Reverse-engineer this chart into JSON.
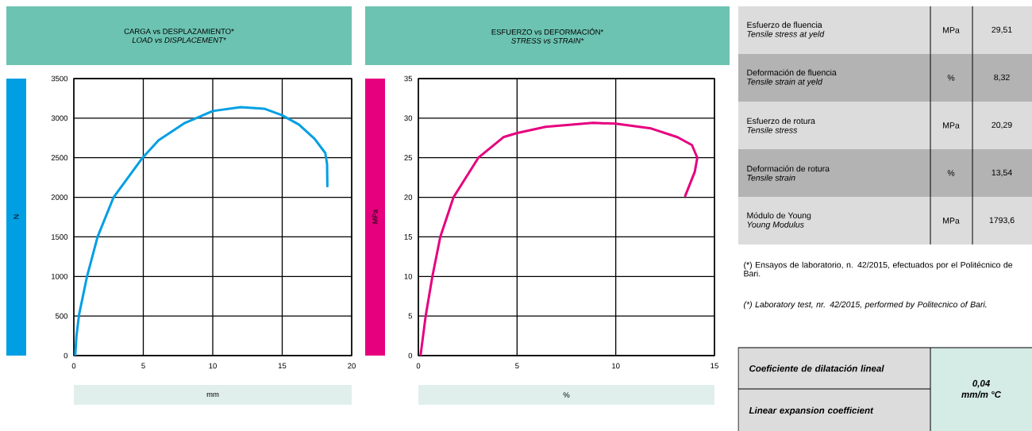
{
  "chart_data": [
    {
      "type": "line",
      "title": "CARGA vs DESPLAZAMIENTO*",
      "subtitle": "LOAD vs DISPLACEMENT*",
      "xlabel": "mm",
      "ylabel": "N",
      "x": [
        0.1,
        0.19,
        0.38,
        0.95,
        1.71,
        2.86,
        4.95,
        6.1,
        8.0,
        10.0,
        12.0,
        13.7,
        14.95,
        16.2,
        17.33,
        18.1,
        18.23,
        18.25
      ],
      "series": [
        {
          "color": "#009fe3",
          "values": [
            0,
            250,
            520,
            1000,
            1500,
            2000,
            2500,
            2720,
            2940,
            3090,
            3140,
            3120,
            3040,
            2920,
            2740,
            2560,
            2420,
            2140
          ]
        }
      ],
      "xlim": [
        0,
        20
      ],
      "ylim": [
        0,
        3500
      ],
      "xticks": [
        0,
        5,
        10,
        15,
        20
      ],
      "yticks": [
        0,
        500,
        1000,
        1500,
        2000,
        2500,
        3000,
        3500
      ],
      "grid": true
    },
    {
      "type": "line",
      "title": "ESFUERZO vs DEFORMACIÓN*",
      "subtitle": "STRESS vs STRAIN*",
      "xlabel": "%",
      "ylabel": "MPa",
      "x": [
        0.11,
        0.37,
        0.71,
        1.11,
        1.78,
        3.04,
        4.31,
        4.98,
        6.45,
        8.85,
        9.99,
        11.79,
        13.12,
        13.86,
        14.13,
        14.0,
        13.52
      ],
      "series": [
        {
          "color": "#e6007e",
          "values": [
            0,
            5.0,
            10.0,
            15.0,
            20.0,
            25.0,
            27.6,
            28.1,
            28.9,
            29.4,
            29.3,
            28.7,
            27.6,
            26.6,
            25.0,
            23.2,
            20.2
          ]
        }
      ],
      "xlim": [
        0,
        15
      ],
      "ylim": [
        0,
        35
      ],
      "xticks": [
        0,
        5,
        10,
        15
      ],
      "yticks": [
        0,
        5,
        10,
        15,
        20,
        25,
        30,
        35
      ],
      "grid": true
    },
    {
      "type": "other",
      "annotations": [
        "Esfuerzo de fluencia",
        "Tensile stress at yeld",
        "MPa",
        "29,51",
        "Deformación de fluencia",
        "Tensile strain at yeld",
        "%",
        "8,32",
        "Esfuerzo de rotura",
        "Tensile stress",
        "MPa",
        "20,29",
        "Deformación de rotura",
        "Tensile strain",
        "%",
        "13,54",
        "Módulo de Young",
        "Young Modulus",
        "MPa",
        "1793,6",
        "(*) Ensayos de laboratorio, n. 42/2015, efectuados por el Politécnico de Bari.",
        "(*) Laboratory test, nr. 42/2015, performed by Politecnico of Bari.",
        "Coeficiente de dilatación lineal",
        "Linear expansion coefficient",
        "0,04",
        "mm/m °C"
      ]
    }
  ]
}
